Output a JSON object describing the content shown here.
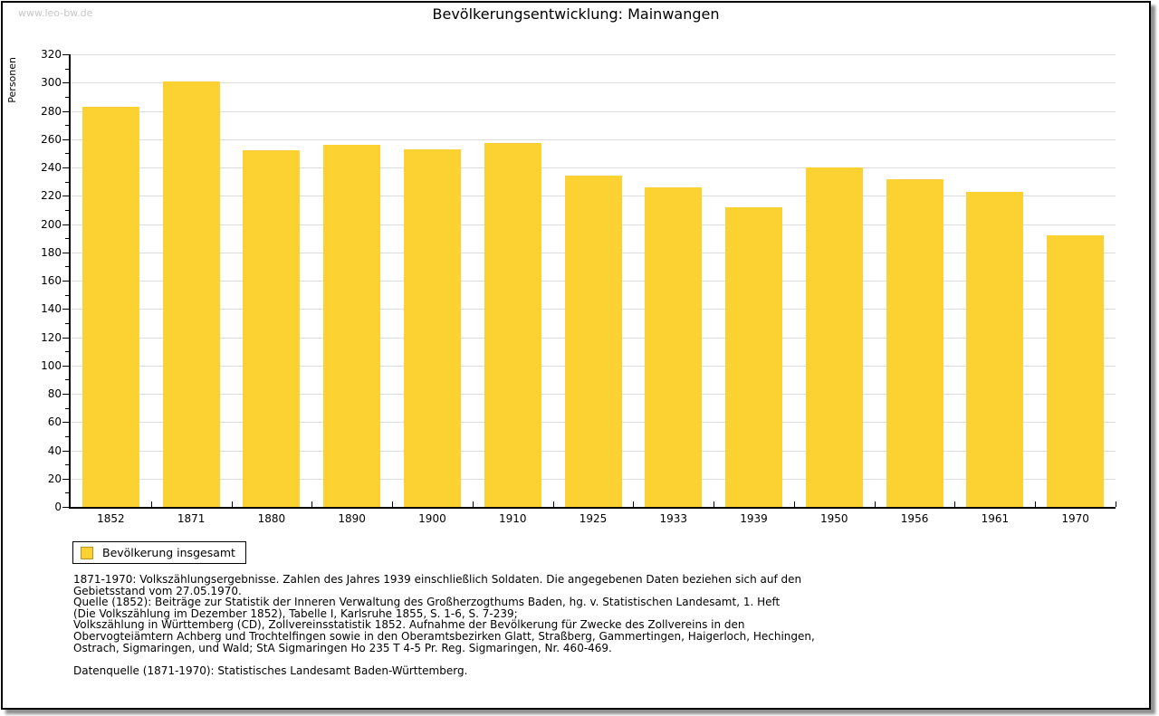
{
  "watermark": "www.leo-bw.de",
  "chart_data": {
    "type": "bar",
    "title": "Bevölkerungsentwicklung: Mainwangen",
    "ylabel": "Personen",
    "xlabel": "",
    "ylim": [
      0,
      320
    ],
    "ytick_step": 20,
    "yminor_step": 10,
    "grid": true,
    "legend_position": "bottom-left",
    "categories": [
      "1852",
      "1871",
      "1880",
      "1890",
      "1900",
      "1910",
      "1925",
      "1933",
      "1939",
      "1950",
      "1956",
      "1961",
      "1970"
    ],
    "series": [
      {
        "name": "Bevölkerung insgesamt",
        "values": [
          283,
          301,
          252,
          256,
          253,
          257,
          234,
          226,
          212,
          240,
          232,
          223,
          192
        ]
      }
    ]
  },
  "legend": {
    "label": "Bevölkerung insgesamt"
  },
  "colors": {
    "bar": "#fbd232",
    "swatch_border": "#b8912a",
    "grid": "#dcdcdc",
    "axis": "#000000",
    "watermark": "#c6c6c6"
  },
  "footnotes": [
    "1871-1970: Volkszählungsergebnisse. Zahlen des Jahres 1939 einschließlich Soldaten. Die angegebenen Daten beziehen sich auf den",
    "Gebietsstand vom 27.05.1970.",
    "Quelle (1852): Beiträge zur Statistik der Inneren Verwaltung des Großherzogthums Baden, hg. v. Statistischen Landesamt, 1. Heft",
    "(Die Volkszählung im Dezember 1852), Tabelle I, Karlsruhe 1855, S. 1-6, S. 7-239;",
    "Volkszählung in Württemberg (CD), Zollvereinsstatistik 1852. Aufnahme der Bevölkerung für Zwecke des Zollvereins in den",
    "Obervogteiämtern Achberg und Trochtelfingen sowie in den Oberamtsbezirken Glatt, Straßberg, Gammertingen, Haigerloch, Hechingen,",
    "Ostrach, Sigmaringen, und Wald; StA Sigmaringen Ho 235 T 4-5 Pr. Reg. Sigmaringen, Nr. 460-469.",
    "",
    "Datenquelle (1871-1970): Statistisches Landesamt Baden-Württemberg."
  ]
}
